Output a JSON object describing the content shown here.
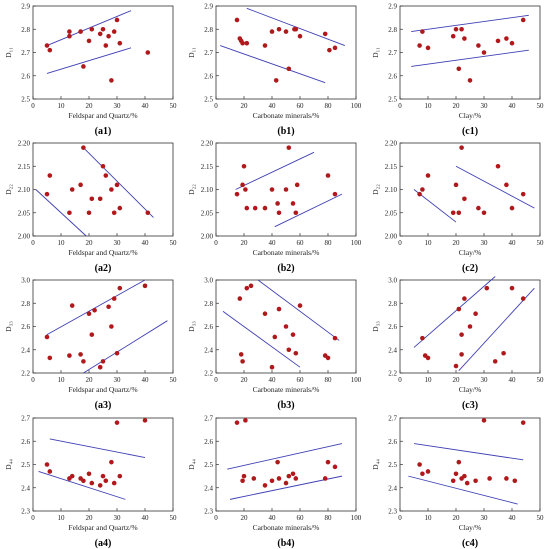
{
  "colors": {
    "point": "#b0191c",
    "line": "#3f3fb5",
    "axis": "#333333",
    "text": "#222222"
  },
  "chart_data": [
    {
      "type": "scatter",
      "label": "(a1)",
      "xlabel": "Feldspar and Quartz/%",
      "ylabel": "D₁₁",
      "xlim": [
        0,
        50
      ],
      "ylim": [
        2.5,
        2.9
      ],
      "xticks": [
        0,
        10,
        20,
        30,
        40,
        50
      ],
      "yticks": [
        2.5,
        2.6,
        2.7,
        2.8,
        2.9
      ],
      "x": [
        5,
        6,
        13,
        13,
        17,
        18,
        20,
        21,
        24,
        25,
        26,
        27,
        28,
        29,
        30,
        31,
        41
      ],
      "y": [
        2.73,
        2.71,
        2.79,
        2.77,
        2.79,
        2.64,
        2.75,
        2.8,
        2.78,
        2.8,
        2.73,
        2.77,
        2.58,
        2.79,
        2.84,
        2.74,
        2.7
      ],
      "lines": [
        [
          [
            5,
            2.73
          ],
          [
            35,
            2.88
          ]
        ],
        [
          [
            5,
            2.61
          ],
          [
            35,
            2.72
          ]
        ]
      ]
    },
    {
      "type": "scatter",
      "label": "(b1)",
      "xlabel": "Carbonate minerals/%",
      "ylabel": "D₁₁",
      "xlim": [
        0,
        100
      ],
      "ylim": [
        2.5,
        2.9
      ],
      "xticks": [
        0,
        20,
        40,
        60,
        80,
        100
      ],
      "yticks": [
        2.5,
        2.6,
        2.7,
        2.8,
        2.9
      ],
      "x": [
        15,
        17,
        18,
        19,
        22,
        35,
        40,
        43,
        45,
        50,
        52,
        56,
        57,
        60,
        78,
        81,
        85
      ],
      "y": [
        2.84,
        2.76,
        2.75,
        2.74,
        2.74,
        2.73,
        2.79,
        2.58,
        2.8,
        2.79,
        2.63,
        2.8,
        2.8,
        2.77,
        2.78,
        2.71,
        2.72
      ],
      "lines": [
        [
          [
            22,
            2.89
          ],
          [
            92,
            2.73
          ]
        ],
        [
          [
            3,
            2.73
          ],
          [
            78,
            2.57
          ]
        ]
      ]
    },
    {
      "type": "scatter",
      "label": "(c1)",
      "xlabel": "Clay/%",
      "ylabel": "D₁₁",
      "xlim": [
        0,
        50
      ],
      "ylim": [
        2.5,
        2.9
      ],
      "xticks": [
        0,
        10,
        20,
        30,
        40,
        50
      ],
      "yticks": [
        2.5,
        2.6,
        2.7,
        2.8,
        2.9
      ],
      "x": [
        7,
        8,
        10,
        19,
        20,
        21,
        22,
        23,
        25,
        28,
        30,
        35,
        38,
        40,
        44
      ],
      "y": [
        2.73,
        2.79,
        2.72,
        2.77,
        2.8,
        2.63,
        2.8,
        2.76,
        2.58,
        2.73,
        2.7,
        2.75,
        2.76,
        2.74,
        2.84
      ],
      "lines": [
        [
          [
            4,
            2.79
          ],
          [
            46,
            2.86
          ]
        ],
        [
          [
            4,
            2.64
          ],
          [
            46,
            2.71
          ]
        ]
      ]
    },
    {
      "type": "scatter",
      "label": "(a2)",
      "xlabel": "Feldspar and Quartz/%",
      "ylabel": "D₂₂",
      "xlim": [
        0,
        50
      ],
      "ylim": [
        2.0,
        2.2
      ],
      "xticks": [
        0,
        10,
        20,
        30,
        40,
        50
      ],
      "yticks": [
        2.0,
        2.05,
        2.1,
        2.15,
        2.2
      ],
      "x": [
        5,
        6,
        13,
        14,
        17,
        18,
        20,
        21,
        24,
        25,
        26,
        28,
        29,
        30,
        31,
        41
      ],
      "y": [
        2.09,
        2.13,
        2.05,
        2.1,
        2.11,
        2.19,
        2.05,
        2.08,
        2.08,
        2.15,
        2.13,
        2.1,
        2.05,
        2.11,
        2.06,
        2.05
      ],
      "lines": [
        [
          [
            1,
            2.1
          ],
          [
            19,
            2.0
          ]
        ],
        [
          [
            18,
            2.19
          ],
          [
            43,
            2.04
          ]
        ]
      ]
    },
    {
      "type": "scatter",
      "label": "(b2)",
      "xlabel": "Carbonate minerals/%",
      "ylabel": "D₂₂",
      "xlim": [
        0,
        100
      ],
      "ylim": [
        2.0,
        2.2
      ],
      "xticks": [
        0,
        20,
        40,
        60,
        80,
        100
      ],
      "yticks": [
        2.0,
        2.05,
        2.1,
        2.15,
        2.2
      ],
      "x": [
        15,
        19,
        20,
        21,
        22,
        28,
        35,
        40,
        44,
        45,
        50,
        52,
        55,
        57,
        58,
        80,
        85
      ],
      "y": [
        2.09,
        2.11,
        2.15,
        2.1,
        2.06,
        2.06,
        2.06,
        2.1,
        2.07,
        2.05,
        2.1,
        2.19,
        2.07,
        2.05,
        2.11,
        2.13,
        2.09
      ],
      "lines": [
        [
          [
            14,
            2.1
          ],
          [
            70,
            2.18
          ]
        ],
        [
          [
            42,
            2.02
          ],
          [
            90,
            2.09
          ]
        ]
      ]
    },
    {
      "type": "scatter",
      "label": "(c2)",
      "xlabel": "Clay/%",
      "ylabel": "D₂₂",
      "xlim": [
        0,
        50
      ],
      "ylim": [
        2.0,
        2.2
      ],
      "xticks": [
        0,
        10,
        20,
        30,
        40,
        50
      ],
      "yticks": [
        2.0,
        2.05,
        2.1,
        2.15,
        2.2
      ],
      "x": [
        7,
        8,
        10,
        19,
        20,
        21,
        22,
        23,
        28,
        30,
        35,
        38,
        40,
        44
      ],
      "y": [
        2.09,
        2.1,
        2.13,
        2.05,
        2.11,
        2.05,
        2.19,
        2.08,
        2.06,
        2.05,
        2.15,
        2.11,
        2.06,
        2.09
      ],
      "lines": [
        [
          [
            5,
            2.1
          ],
          [
            20,
            2.03
          ]
        ],
        [
          [
            20,
            2.15
          ],
          [
            48,
            2.06
          ]
        ]
      ]
    },
    {
      "type": "scatter",
      "label": "(a3)",
      "xlabel": "Feldspar and Quartz/%",
      "ylabel": "D₃₃",
      "xlim": [
        0,
        50
      ],
      "ylim": [
        2.2,
        3.0
      ],
      "xticks": [
        0,
        10,
        20,
        30,
        40,
        50
      ],
      "yticks": [
        2.2,
        2.4,
        2.6,
        2.8,
        3.0
      ],
      "x": [
        5,
        6,
        13,
        14,
        17,
        18,
        20,
        21,
        22,
        24,
        25,
        27,
        28,
        29,
        30,
        31,
        40
      ],
      "y": [
        2.51,
        2.33,
        2.35,
        2.78,
        2.36,
        2.3,
        2.71,
        2.53,
        2.74,
        2.25,
        2.3,
        2.77,
        2.6,
        2.84,
        2.37,
        2.93,
        2.95
      ],
      "lines": [
        [
          [
            5,
            2.53
          ],
          [
            40,
            3.0
          ]
        ],
        [
          [
            18,
            2.2
          ],
          [
            48,
            2.65
          ]
        ]
      ]
    },
    {
      "type": "scatter",
      "label": "(b3)",
      "xlabel": "Carbonate minerals/%",
      "ylabel": "D₃₃",
      "xlim": [
        0,
        100
      ],
      "ylim": [
        2.2,
        3.0
      ],
      "xticks": [
        0,
        20,
        40,
        60,
        80,
        100
      ],
      "yticks": [
        2.2,
        2.4,
        2.6,
        2.8,
        3.0
      ],
      "x": [
        17,
        18,
        19,
        22,
        25,
        35,
        40,
        42,
        45,
        50,
        52,
        55,
        57,
        60,
        78,
        80,
        85
      ],
      "y": [
        2.84,
        2.36,
        2.3,
        2.93,
        2.95,
        2.71,
        2.25,
        2.51,
        2.75,
        2.6,
        2.4,
        2.53,
        2.37,
        2.78,
        2.35,
        2.33,
        2.5
      ],
      "lines": [
        [
          [
            30,
            3.0
          ],
          [
            88,
            2.48
          ]
        ],
        [
          [
            5,
            2.73
          ],
          [
            60,
            2.25
          ]
        ]
      ]
    },
    {
      "type": "scatter",
      "label": "(c3)",
      "xlabel": "Clay/%",
      "ylabel": "D₃₃",
      "xlim": [
        0,
        50
      ],
      "ylim": [
        2.2,
        3.0
      ],
      "xticks": [
        0,
        10,
        20,
        30,
        40,
        50
      ],
      "yticks": [
        2.2,
        2.4,
        2.6,
        2.8,
        3.0
      ],
      "x": [
        8,
        9,
        10,
        20,
        21,
        22,
        22,
        23,
        25,
        27,
        31,
        34,
        37,
        40,
        44
      ],
      "y": [
        2.5,
        2.35,
        2.33,
        2.26,
        2.75,
        2.36,
        2.53,
        2.84,
        2.6,
        2.71,
        2.93,
        2.3,
        2.37,
        2.93,
        2.84
      ],
      "lines": [
        [
          [
            5,
            2.42
          ],
          [
            34,
            3.03
          ]
        ],
        [
          [
            21,
            2.22
          ],
          [
            48,
            2.93
          ]
        ]
      ]
    },
    {
      "type": "scatter",
      "label": "(a4)",
      "xlabel": "Feldspar and Quartz/%",
      "ylabel": "D₄₄",
      "xlim": [
        0,
        50
      ],
      "ylim": [
        2.3,
        2.7
      ],
      "xticks": [
        0,
        10,
        20,
        30,
        40,
        50
      ],
      "yticks": [
        2.3,
        2.4,
        2.5,
        2.6,
        2.7
      ],
      "x": [
        5,
        6,
        13,
        14,
        17,
        18,
        20,
        21,
        24,
        25,
        26,
        28,
        29,
        30,
        31,
        40
      ],
      "y": [
        2.5,
        2.47,
        2.44,
        2.45,
        2.44,
        2.43,
        2.46,
        2.42,
        2.41,
        2.45,
        2.43,
        2.51,
        2.42,
        2.68,
        2.45,
        2.69
      ],
      "lines": [
        [
          [
            6,
            2.61
          ],
          [
            40,
            2.53
          ]
        ],
        [
          [
            2,
            2.47
          ],
          [
            33,
            2.35
          ]
        ]
      ]
    },
    {
      "type": "scatter",
      "label": "(b4)",
      "xlabel": "Carbonate minerals/%",
      "ylabel": "D₄₄",
      "xlim": [
        0,
        100
      ],
      "ylim": [
        2.3,
        2.7
      ],
      "xticks": [
        0,
        20,
        40,
        60,
        80,
        100
      ],
      "yticks": [
        2.3,
        2.4,
        2.5,
        2.6,
        2.7
      ],
      "x": [
        15,
        19,
        20,
        21,
        27,
        35,
        40,
        44,
        45,
        50,
        52,
        55,
        57,
        78,
        80,
        85
      ],
      "y": [
        2.68,
        2.43,
        2.45,
        2.69,
        2.44,
        2.41,
        2.43,
        2.51,
        2.44,
        2.42,
        2.45,
        2.46,
        2.44,
        2.44,
        2.51,
        2.49
      ],
      "lines": [
        [
          [
            8,
            2.48
          ],
          [
            90,
            2.59
          ]
        ],
        [
          [
            10,
            2.35
          ],
          [
            90,
            2.45
          ]
        ]
      ]
    },
    {
      "type": "scatter",
      "label": "(c4)",
      "xlabel": "Clay/%",
      "ylabel": "D₄₄",
      "xlim": [
        0,
        50
      ],
      "ylim": [
        2.3,
        2.7
      ],
      "xticks": [
        0,
        10,
        20,
        30,
        40,
        50
      ],
      "yticks": [
        2.3,
        2.4,
        2.5,
        2.6,
        2.7
      ],
      "x": [
        7,
        8,
        10,
        19,
        20,
        21,
        22,
        23,
        24,
        27,
        30,
        32,
        38,
        41,
        44
      ],
      "y": [
        2.5,
        2.46,
        2.47,
        2.43,
        2.46,
        2.51,
        2.44,
        2.45,
        2.42,
        2.43,
        2.69,
        2.44,
        2.44,
        2.43,
        2.68
      ],
      "lines": [
        [
          [
            5,
            2.59
          ],
          [
            44,
            2.52
          ]
        ],
        [
          [
            3,
            2.45
          ],
          [
            42,
            2.33
          ]
        ]
      ]
    }
  ]
}
